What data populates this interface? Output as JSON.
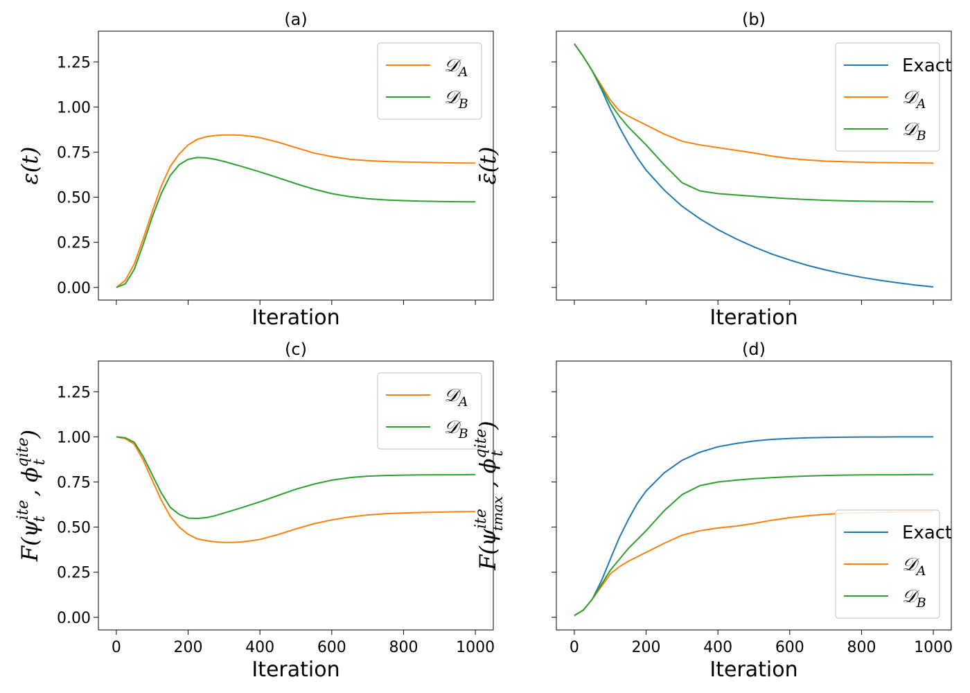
{
  "chart_data": [
    {
      "id": "a",
      "type": "line",
      "title": "(a)",
      "xlabel": "Iteration",
      "ylabel": "ε(t)",
      "xlim": [
        -50,
        1050
      ],
      "ylim": [
        -0.07,
        1.42
      ],
      "xticks": [
        0,
        200,
        400,
        600,
        800,
        1000
      ],
      "yticks": [
        0.0,
        0.25,
        0.5,
        0.75,
        1.0,
        1.25
      ],
      "ytick_labels": [
        "0.00",
        "0.25",
        "0.50",
        "0.75",
        "1.00",
        "1.25"
      ],
      "show_xtick_labels": false,
      "show_ytick_labels": true,
      "legend_position": "top-right",
      "series": [
        {
          "name": "𝒟_A",
          "label_main": "𝒟",
          "label_sub": "A",
          "color": "#ff7f0e",
          "x": [
            0,
            25,
            50,
            75,
            100,
            125,
            150,
            175,
            200,
            225,
            250,
            275,
            300,
            325,
            350,
            375,
            400,
            450,
            500,
            550,
            600,
            650,
            700,
            750,
            800,
            850,
            900,
            950,
            1000
          ],
          "y": [
            0.0,
            0.04,
            0.13,
            0.27,
            0.42,
            0.56,
            0.67,
            0.74,
            0.79,
            0.82,
            0.835,
            0.842,
            0.845,
            0.845,
            0.843,
            0.838,
            0.83,
            0.805,
            0.775,
            0.745,
            0.725,
            0.71,
            0.703,
            0.698,
            0.695,
            0.693,
            0.691,
            0.69,
            0.689
          ]
        },
        {
          "name": "𝒟_B",
          "label_main": "𝒟",
          "label_sub": "B",
          "color": "#2ca02c",
          "x": [
            0,
            25,
            50,
            75,
            100,
            125,
            150,
            175,
            200,
            225,
            250,
            275,
            300,
            350,
            400,
            450,
            500,
            550,
            600,
            650,
            700,
            750,
            800,
            850,
            900,
            950,
            1000
          ],
          "y": [
            0.0,
            0.02,
            0.1,
            0.24,
            0.39,
            0.52,
            0.62,
            0.68,
            0.71,
            0.72,
            0.718,
            0.71,
            0.698,
            0.67,
            0.64,
            0.608,
            0.575,
            0.545,
            0.52,
            0.503,
            0.492,
            0.485,
            0.481,
            0.478,
            0.476,
            0.475,
            0.474
          ]
        }
      ]
    },
    {
      "id": "b",
      "type": "line",
      "title": "(b)",
      "xlabel": "Iteration",
      "ylabel": "ε̄(t)",
      "xlim": [
        -50,
        1050
      ],
      "ylim": [
        -0.07,
        1.42
      ],
      "xticks": [
        0,
        200,
        400,
        600,
        800,
        1000
      ],
      "yticks": [
        0.0,
        0.25,
        0.5,
        0.75,
        1.0,
        1.25
      ],
      "ytick_labels": [
        "",
        "",
        "",
        "",
        "",
        ""
      ],
      "show_xtick_labels": false,
      "show_ytick_labels": false,
      "legend_position": "top-right",
      "series": [
        {
          "name": "Exact",
          "label_main": "Exact",
          "label_sub": "",
          "color": "#1f77b4",
          "x": [
            0,
            25,
            50,
            75,
            100,
            125,
            150,
            175,
            200,
            250,
            300,
            350,
            400,
            450,
            500,
            550,
            600,
            650,
            700,
            750,
            800,
            850,
            900,
            950,
            1000
          ],
          "y": [
            1.35,
            1.28,
            1.2,
            1.1,
            0.99,
            0.89,
            0.8,
            0.72,
            0.65,
            0.54,
            0.45,
            0.38,
            0.32,
            0.27,
            0.225,
            0.185,
            0.152,
            0.122,
            0.097,
            0.075,
            0.056,
            0.04,
            0.026,
            0.013,
            0.003
          ]
        },
        {
          "name": "𝒟_A",
          "label_main": "𝒟",
          "label_sub": "A",
          "color": "#ff7f0e",
          "x": [
            0,
            25,
            50,
            75,
            100,
            125,
            150,
            200,
            250,
            300,
            350,
            400,
            450,
            500,
            550,
            600,
            650,
            700,
            750,
            800,
            850,
            900,
            950,
            1000
          ],
          "y": [
            1.35,
            1.28,
            1.2,
            1.12,
            1.04,
            0.98,
            0.95,
            0.9,
            0.85,
            0.81,
            0.79,
            0.775,
            0.76,
            0.745,
            0.728,
            0.715,
            0.706,
            0.7,
            0.697,
            0.694,
            0.692,
            0.691,
            0.69,
            0.689
          ]
        },
        {
          "name": "𝒟_B",
          "label_main": "𝒟",
          "label_sub": "B",
          "color": "#2ca02c",
          "x": [
            0,
            25,
            50,
            75,
            100,
            125,
            150,
            200,
            250,
            300,
            350,
            400,
            450,
            500,
            550,
            600,
            650,
            700,
            750,
            800,
            850,
            900,
            950,
            1000
          ],
          "y": [
            1.35,
            1.28,
            1.2,
            1.11,
            1.02,
            0.95,
            0.89,
            0.79,
            0.68,
            0.58,
            0.535,
            0.52,
            0.512,
            0.505,
            0.498,
            0.492,
            0.487,
            0.483,
            0.48,
            0.478,
            0.477,
            0.476,
            0.475,
            0.474
          ]
        }
      ]
    },
    {
      "id": "c",
      "type": "line",
      "title": "(c)",
      "xlabel": "Iteration",
      "ylabel": "F(ψ_t^ite , ϕ_t^qite)",
      "xlim": [
        -50,
        1050
      ],
      "ylim": [
        -0.07,
        1.42
      ],
      "xticks": [
        0,
        200,
        400,
        600,
        800,
        1000
      ],
      "xtick_labels": [
        "0",
        "200",
        "400",
        "600",
        "800",
        "1000"
      ],
      "yticks": [
        0.0,
        0.25,
        0.5,
        0.75,
        1.0,
        1.25
      ],
      "ytick_labels": [
        "0.00",
        "0.25",
        "0.50",
        "0.75",
        "1.00",
        "1.25"
      ],
      "show_xtick_labels": true,
      "show_ytick_labels": true,
      "legend_position": "top-right",
      "series": [
        {
          "name": "𝒟_A",
          "label_main": "𝒟",
          "label_sub": "A",
          "color": "#ff7f0e",
          "x": [
            0,
            25,
            50,
            75,
            100,
            125,
            150,
            175,
            200,
            225,
            250,
            275,
            300,
            325,
            350,
            375,
            400,
            450,
            500,
            550,
            600,
            650,
            700,
            750,
            800,
            850,
            900,
            950,
            1000
          ],
          "y": [
            1.0,
            0.99,
            0.96,
            0.87,
            0.76,
            0.65,
            0.56,
            0.5,
            0.46,
            0.435,
            0.425,
            0.418,
            0.415,
            0.415,
            0.418,
            0.424,
            0.432,
            0.458,
            0.49,
            0.518,
            0.54,
            0.556,
            0.567,
            0.574,
            0.578,
            0.581,
            0.583,
            0.585,
            0.586
          ]
        },
        {
          "name": "𝒟_B",
          "label_main": "𝒟",
          "label_sub": "B",
          "color": "#2ca02c",
          "x": [
            0,
            25,
            50,
            75,
            100,
            125,
            150,
            175,
            200,
            225,
            250,
            275,
            300,
            350,
            400,
            450,
            500,
            550,
            600,
            650,
            700,
            750,
            800,
            850,
            900,
            950,
            1000
          ],
          "y": [
            1.0,
            0.995,
            0.97,
            0.89,
            0.79,
            0.69,
            0.61,
            0.57,
            0.55,
            0.548,
            0.552,
            0.563,
            0.578,
            0.608,
            0.64,
            0.675,
            0.71,
            0.738,
            0.76,
            0.774,
            0.782,
            0.786,
            0.788,
            0.789,
            0.79,
            0.79,
            0.791
          ]
        }
      ]
    },
    {
      "id": "d",
      "type": "line",
      "title": "(d)",
      "xlabel": "Iteration",
      "ylabel": "F(ψ_tmax^ite , ϕ_t^qite)",
      "xlim": [
        -50,
        1050
      ],
      "ylim": [
        -0.07,
        1.42
      ],
      "xticks": [
        0,
        200,
        400,
        600,
        800,
        1000
      ],
      "xtick_labels": [
        "0",
        "200",
        "400",
        "600",
        "800",
        "1000"
      ],
      "yticks": [
        0.0,
        0.25,
        0.5,
        0.75,
        1.0,
        1.25
      ],
      "ytick_labels": [
        "",
        "",
        "",
        "",
        "",
        ""
      ],
      "show_xtick_labels": true,
      "show_ytick_labels": false,
      "legend_position": "bottom-right",
      "series": [
        {
          "name": "Exact",
          "label_main": "Exact",
          "label_sub": "",
          "color": "#1f77b4",
          "x": [
            0,
            25,
            50,
            75,
            100,
            125,
            150,
            175,
            200,
            250,
            300,
            350,
            400,
            450,
            500,
            550,
            600,
            650,
            700,
            750,
            800,
            850,
            900,
            950,
            1000
          ],
          "y": [
            0.01,
            0.04,
            0.1,
            0.2,
            0.32,
            0.44,
            0.54,
            0.63,
            0.7,
            0.8,
            0.87,
            0.915,
            0.945,
            0.963,
            0.977,
            0.986,
            0.991,
            0.995,
            0.997,
            0.998,
            0.999,
            0.999,
            1.0,
            1.0,
            1.0
          ]
        },
        {
          "name": "𝒟_A",
          "label_main": "𝒟",
          "label_sub": "A",
          "color": "#ff7f0e",
          "x": [
            0,
            25,
            50,
            75,
            100,
            125,
            150,
            200,
            250,
            300,
            350,
            400,
            450,
            500,
            550,
            600,
            650,
            700,
            750,
            800,
            850,
            900,
            950,
            1000
          ],
          "y": [
            0.01,
            0.04,
            0.1,
            0.17,
            0.24,
            0.28,
            0.31,
            0.36,
            0.41,
            0.455,
            0.48,
            0.495,
            0.505,
            0.52,
            0.538,
            0.552,
            0.563,
            0.571,
            0.576,
            0.579,
            0.582,
            0.584,
            0.585,
            0.586
          ]
        },
        {
          "name": "𝒟_B",
          "label_main": "𝒟",
          "label_sub": "B",
          "color": "#2ca02c",
          "x": [
            0,
            25,
            50,
            75,
            100,
            125,
            150,
            200,
            250,
            300,
            350,
            400,
            450,
            500,
            550,
            600,
            650,
            700,
            750,
            800,
            850,
            900,
            950,
            1000
          ],
          "y": [
            0.01,
            0.04,
            0.1,
            0.18,
            0.26,
            0.32,
            0.38,
            0.48,
            0.59,
            0.68,
            0.73,
            0.75,
            0.76,
            0.768,
            0.774,
            0.779,
            0.783,
            0.786,
            0.788,
            0.789,
            0.79,
            0.79,
            0.791,
            0.791
          ]
        }
      ]
    }
  ]
}
